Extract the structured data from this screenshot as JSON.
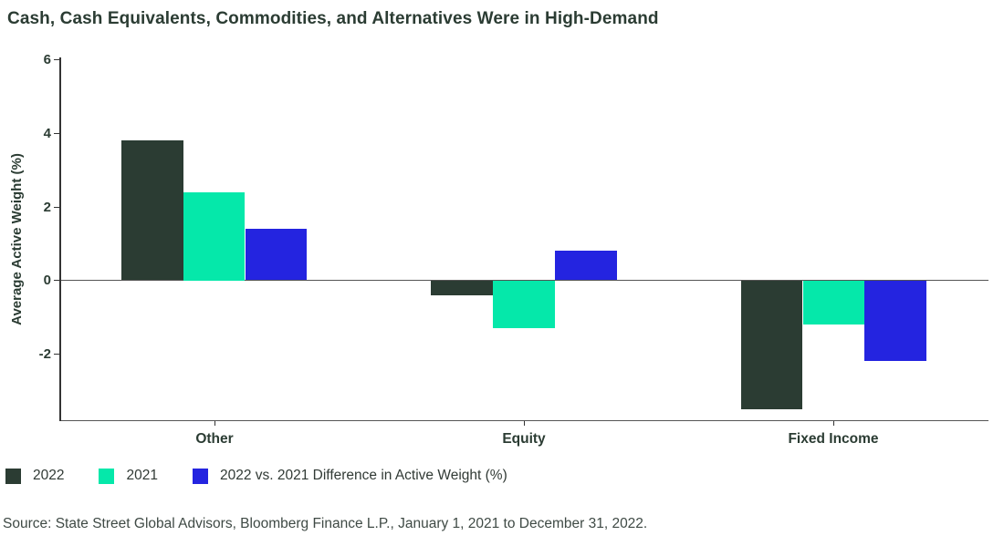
{
  "title": "Cash, Cash Equivalents, Commodities, and Alternatives Were in High-Demand",
  "chart_data": {
    "type": "bar",
    "categories": [
      "Other",
      "Equity",
      "Fixed Income"
    ],
    "series": [
      {
        "name": "2022",
        "color": "#2b3c33",
        "values": [
          3.8,
          -0.4,
          -3.5
        ]
      },
      {
        "name": "2021",
        "color": "#05e8aa",
        "values": [
          2.4,
          -1.3,
          -1.2
        ]
      },
      {
        "name": "2022 vs. 2021 Difference in Active Weight (%)",
        "color": "#2424e0",
        "values": [
          1.4,
          0.8,
          -2.2
        ]
      }
    ],
    "title": "Cash, Cash Equivalents, Commodities, and Alternatives Were in High-Demand",
    "xlabel": "",
    "ylabel": "Average Active Weight (%)",
    "yticks": [
      -2,
      0,
      2,
      4,
      6
    ],
    "ylim": [
      -3.8,
      6.05
    ],
    "grid": false,
    "legend_position": "bottom"
  },
  "source": "Source: State Street Global Advisors, Bloomberg Finance L.P., January 1, 2021 to December 31, 2022."
}
